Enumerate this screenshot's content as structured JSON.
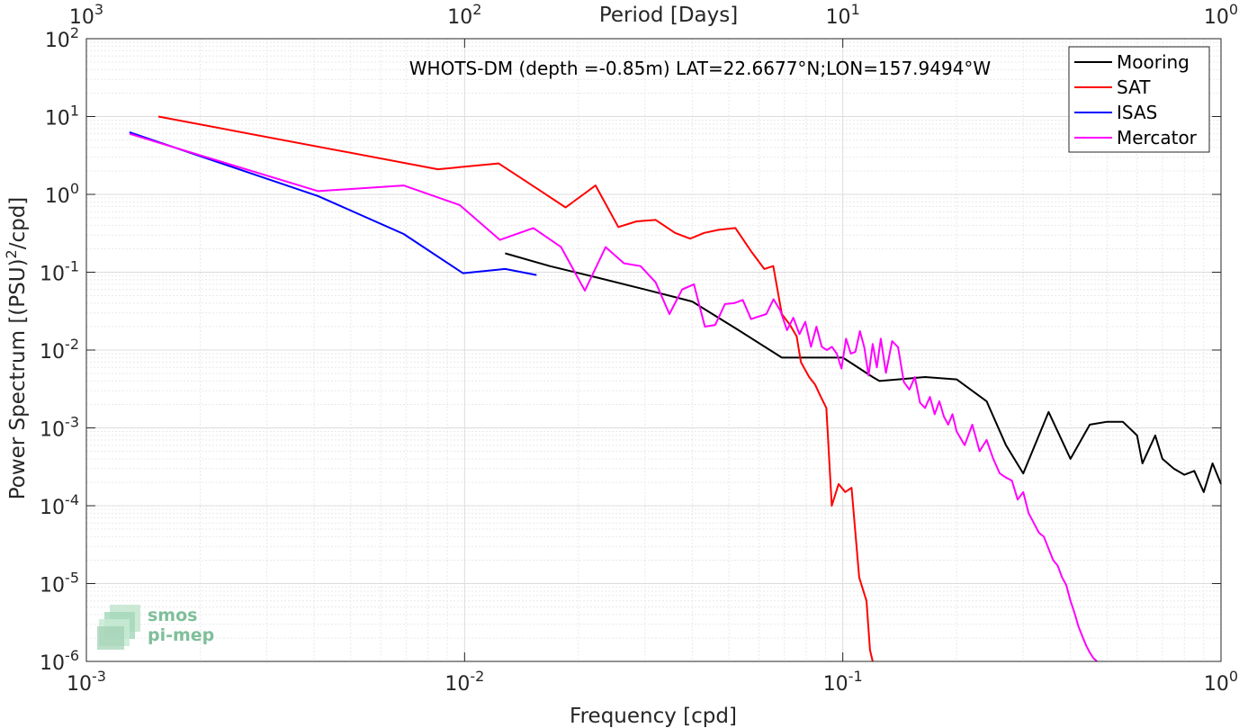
{
  "chart_data": {
    "type": "line",
    "title": "WHOTS-DM (depth =-0.85m) LAT=22.6677°N;LON=157.9494°W",
    "xlabel": "Frequency [cpd]",
    "ylabel": "Power Spectrum [(PSU)^2/cpd]",
    "top_xlabel": "Period [Days]",
    "xscale": "log",
    "yscale": "log",
    "xlim": [
      0.001,
      1
    ],
    "ylim": [
      1e-06,
      100
    ],
    "grid": true,
    "legend_position": "top-right",
    "x_ticks": [
      {
        "value": 0.001,
        "base": "10",
        "exp": "-3"
      },
      {
        "value": 0.01,
        "base": "10",
        "exp": "-2"
      },
      {
        "value": 0.1,
        "base": "10",
        "exp": "-1"
      },
      {
        "value": 1,
        "base": "10",
        "exp": "0"
      }
    ],
    "top_ticks": [
      {
        "value": 0.001,
        "base": "10",
        "exp": "3"
      },
      {
        "value": 0.01,
        "base": "10",
        "exp": "2"
      },
      {
        "value": 0.1,
        "base": "10",
        "exp": "1"
      },
      {
        "value": 1,
        "base": "10",
        "exp": "0"
      }
    ],
    "y_ticks": [
      {
        "value": 100,
        "base": "10",
        "exp": "2"
      },
      {
        "value": 10,
        "base": "10",
        "exp": "1"
      },
      {
        "value": 1,
        "base": "10",
        "exp": "0"
      },
      {
        "value": 0.1,
        "base": "10",
        "exp": "-1"
      },
      {
        "value": 0.01,
        "base": "10",
        "exp": "-2"
      },
      {
        "value": 0.001,
        "base": "10",
        "exp": "-3"
      },
      {
        "value": 0.0001,
        "base": "10",
        "exp": "-4"
      },
      {
        "value": 1e-05,
        "base": "10",
        "exp": "-5"
      },
      {
        "value": 1e-06,
        "base": "10",
        "exp": "-6"
      }
    ],
    "series": [
      {
        "name": "Mooring",
        "color": "#000000",
        "x": [
          0.0128,
          0.0168,
          0.0225,
          0.03,
          0.04,
          0.053,
          0.069,
          0.075,
          0.085,
          0.1,
          0.12,
          0.125,
          0.14,
          0.165,
          0.2,
          0.24,
          0.27,
          0.3,
          0.35,
          0.4,
          0.45,
          0.5,
          0.55,
          0.6,
          0.62,
          0.67,
          0.7,
          0.75,
          0.8,
          0.85,
          0.9,
          0.95,
          1.0
        ],
        "y": [
          0.175,
          0.12,
          0.085,
          0.06,
          0.042,
          0.018,
          0.008,
          0.008,
          0.008,
          0.008,
          0.0045,
          0.004,
          0.0042,
          0.0045,
          0.0042,
          0.0022,
          0.0006,
          0.00026,
          0.0016,
          0.0004,
          0.0011,
          0.0012,
          0.0012,
          0.0008,
          0.00035,
          0.0008,
          0.0004,
          0.0003,
          0.00025,
          0.00028,
          0.00015,
          0.00035,
          0.00019
        ]
      },
      {
        "name": "SAT",
        "color": "#ff0000",
        "x": [
          0.00155,
          0.0085,
          0.0123,
          0.0155,
          0.0185,
          0.0222,
          0.0255,
          0.0285,
          0.032,
          0.036,
          0.0395,
          0.043,
          0.047,
          0.052,
          0.0575,
          0.062,
          0.0655,
          0.069,
          0.0725,
          0.0755,
          0.0775,
          0.0815,
          0.0845,
          0.0875,
          0.0905,
          0.0935,
          0.0975,
          0.1015,
          0.1055,
          0.1105,
          0.1155,
          0.118,
          0.12
        ],
        "y": [
          10,
          2.1,
          2.5,
          1.2,
          0.68,
          1.3,
          0.38,
          0.45,
          0.47,
          0.32,
          0.27,
          0.32,
          0.35,
          0.37,
          0.18,
          0.11,
          0.12,
          0.029,
          0.021,
          0.015,
          0.007,
          0.0045,
          0.0036,
          0.0025,
          0.0018,
          0.0001,
          0.00019,
          0.00015,
          0.00017,
          1.2e-05,
          6e-06,
          1.4e-06,
          1e-06
        ]
      },
      {
        "name": "ISAS",
        "color": "#0000ff",
        "x": [
          0.0013,
          0.0041,
          0.0069,
          0.0099,
          0.0128,
          0.0155
        ],
        "y": [
          6.3,
          0.95,
          0.31,
          0.097,
          0.11,
          0.092
        ]
      },
      {
        "name": "Mercator",
        "color": "#ff00ff",
        "x": [
          0.0013,
          0.0041,
          0.0069,
          0.0097,
          0.0124,
          0.0152,
          0.018,
          0.0208,
          0.0236,
          0.0264,
          0.0292,
          0.032,
          0.0348,
          0.0376,
          0.0404,
          0.0432,
          0.046,
          0.0488,
          0.0516,
          0.0544,
          0.0572,
          0.06,
          0.0628,
          0.0656,
          0.0684,
          0.0712,
          0.074,
          0.0768,
          0.0796,
          0.0824,
          0.0852,
          0.088,
          0.0908,
          0.0936,
          0.0964,
          0.0992,
          0.102,
          0.105,
          0.108,
          0.111,
          0.114,
          0.117,
          0.12,
          0.123,
          0.126,
          0.13,
          0.135,
          0.14,
          0.145,
          0.15,
          0.155,
          0.16,
          0.165,
          0.17,
          0.175,
          0.18,
          0.185,
          0.19,
          0.195,
          0.2,
          0.21,
          0.22,
          0.23,
          0.24,
          0.25,
          0.26,
          0.27,
          0.28,
          0.29,
          0.3,
          0.31,
          0.32,
          0.33,
          0.34,
          0.35,
          0.36,
          0.37,
          0.38,
          0.39,
          0.4,
          0.41,
          0.42,
          0.43,
          0.44,
          0.45,
          0.46,
          0.47
        ],
        "y": [
          6.0,
          1.1,
          1.3,
          0.73,
          0.26,
          0.37,
          0.21,
          0.058,
          0.21,
          0.13,
          0.12,
          0.074,
          0.029,
          0.06,
          0.07,
          0.02,
          0.021,
          0.039,
          0.04,
          0.044,
          0.025,
          0.027,
          0.029,
          0.045,
          0.032,
          0.018,
          0.026,
          0.016,
          0.023,
          0.011,
          0.02,
          0.011,
          0.01,
          0.011,
          0.009,
          0.0058,
          0.014,
          0.009,
          0.0095,
          0.0175,
          0.0108,
          0.0047,
          0.012,
          0.006,
          0.014,
          0.0051,
          0.013,
          0.0109,
          0.0039,
          0.0031,
          0.0045,
          0.0021,
          0.0018,
          0.0025,
          0.0015,
          0.0022,
          0.0014,
          0.0011,
          0.0015,
          0.0009,
          0.0006,
          0.0011,
          0.0005,
          0.0007,
          0.0004,
          0.00026,
          0.00023,
          0.00021,
          0.00012,
          0.00015,
          8e-05,
          6e-05,
          4.5e-05,
          4e-05,
          2.8e-05,
          2e-05,
          1.7e-05,
          1.2e-05,
          9.5e-06,
          6e-06,
          4.2e-06,
          2.8e-06,
          2.1e-06,
          1.6e-06,
          1.3e-06,
          1.1e-06,
          1e-06
        ]
      }
    ]
  },
  "logo": {
    "line1": "smos",
    "line2": "pi-mep"
  }
}
